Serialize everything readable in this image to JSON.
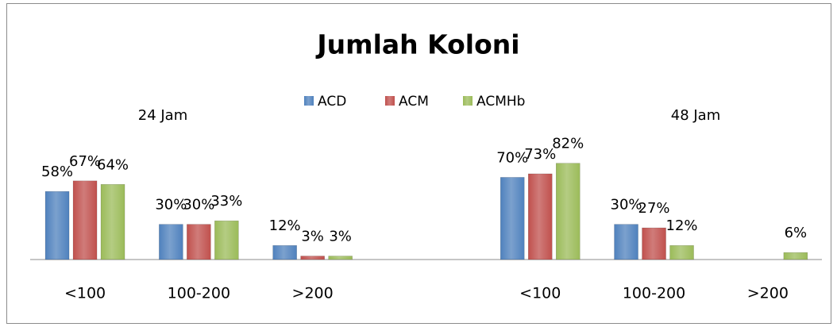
{
  "chart_data": {
    "type": "bar",
    "title": "Jumlah Koloni",
    "annotations": [
      "24 Jam",
      "48 Jam"
    ],
    "categories": [
      "<100",
      "100-200",
      ">200",
      null,
      "<100",
      "100-200",
      ">200"
    ],
    "series": [
      {
        "name": "ACD",
        "color": "#4f81bd",
        "values": [
          58,
          30,
          12,
          null,
          70,
          30,
          null
        ],
        "value_labels": [
          "58%",
          "30%",
          "12%",
          null,
          "70%",
          "30%",
          null
        ]
      },
      {
        "name": "ACM",
        "color": "#c0504d",
        "values": [
          67,
          30,
          3,
          null,
          73,
          27,
          null
        ],
        "value_labels": [
          "67%",
          "30%",
          "3%",
          null,
          "73%",
          "27%",
          null
        ]
      },
      {
        "name": "ACMHb",
        "color": "#9bbb59",
        "values": [
          64,
          33,
          3,
          null,
          82,
          12,
          6
        ],
        "value_labels": [
          "64%",
          "33%",
          "3%",
          null,
          "82%",
          "12%",
          "6%"
        ]
      }
    ],
    "ylim": [
      0,
      100
    ],
    "legend": "top"
  }
}
